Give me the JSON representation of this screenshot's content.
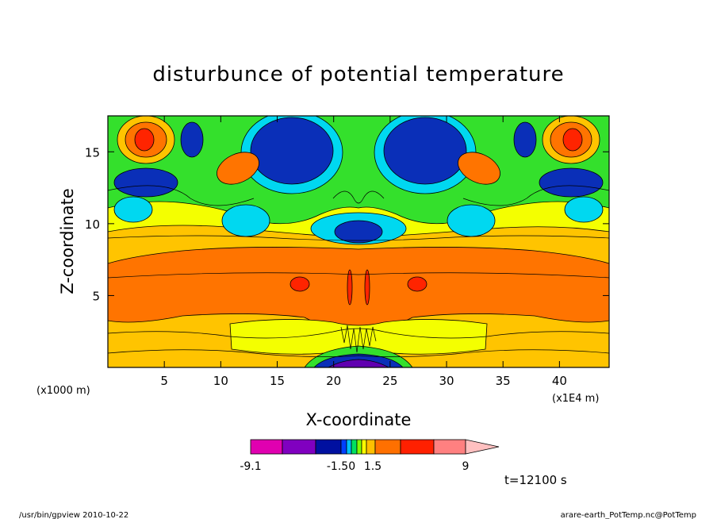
{
  "chart_data": {
    "type": "heatmap",
    "title": "disturbunce of potential temperature",
    "xlabel": "X-coordinate",
    "ylabel": "Z-coordinate",
    "x_unit": "(x1E4 m)",
    "y_unit": "(x1000 m)",
    "x_ticks": [
      5,
      10,
      15,
      20,
      25,
      30,
      35,
      40
    ],
    "y_ticks": [
      5,
      10,
      15
    ],
    "xlim": [
      0,
      44.4
    ],
    "ylim": [
      0,
      17.5
    ],
    "colorbar": {
      "tick_labels": [
        "-9.1",
        "-1.50",
        "1.5",
        "9"
      ],
      "colors": [
        "#e000b0",
        "#8000c0",
        "#0010a0",
        "#0040ff",
        "#00c0ff",
        "#00e060",
        "#80ff00",
        "#ffff00",
        "#ffc000",
        "#ff7000",
        "#ff2000",
        "#ff8080",
        "#ffc0c0"
      ]
    },
    "field_colors": {
      "strong_negative": "#0a2fb8",
      "negative": "#00d8f0",
      "weak_negative": "#34e02c",
      "near_zero": "#f4ff00",
      "weak_positive": "#ffc400",
      "positive": "#ff7400",
      "strong_positive": "#ff2400",
      "deepest_negative": "#6000b0"
    },
    "annotation": "t=12100 s"
  },
  "footer": {
    "left": "/usr/bin/gpview  2010-10-22",
    "right": "arare-earth_PotTemp.nc@PotTemp"
  }
}
